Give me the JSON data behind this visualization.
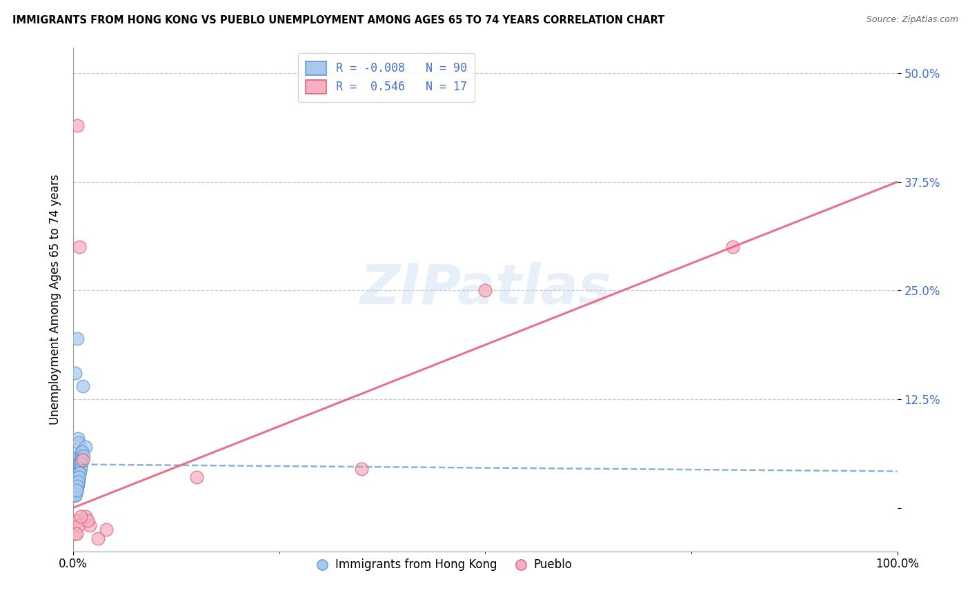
{
  "title": "IMMIGRANTS FROM HONG KONG VS PUEBLO UNEMPLOYMENT AMONG AGES 65 TO 74 YEARS CORRELATION CHART",
  "source": "Source: ZipAtlas.com",
  "ylabel": "Unemployment Among Ages 65 to 74 years",
  "xlim": [
    0,
    100
  ],
  "ylim": [
    -5,
    53
  ],
  "yticks": [
    0,
    12.5,
    25.0,
    37.5,
    50.0
  ],
  "ytick_labels": [
    "",
    "12.5%",
    "25.0%",
    "37.5%",
    "50.0%"
  ],
  "xtick_labels": [
    "0.0%",
    "100.0%"
  ],
  "xticks": [
    0,
    100
  ],
  "blue_R": -0.008,
  "blue_N": 90,
  "pink_R": 0.546,
  "pink_N": 17,
  "blue_color": "#a8c8f0",
  "pink_color": "#f5b0c0",
  "blue_edge_color": "#6699cc",
  "pink_edge_color": "#e06080",
  "blue_line_color": "#7aaad0",
  "pink_line_color": "#e8607a",
  "watermark": "ZIPatlas",
  "blue_scatter_x": [
    0.3,
    0.5,
    0.6,
    0.7,
    0.8,
    0.9,
    1.0,
    1.2,
    1.5,
    0.4,
    0.2,
    0.6,
    0.8,
    1.0,
    0.5,
    0.7,
    0.9,
    1.1,
    0.3,
    0.6,
    0.4,
    0.8,
    1.3,
    0.5,
    0.7,
    0.9,
    0.6,
    0.4,
    0.8,
    0.5,
    0.3,
    0.6,
    0.9,
    0.7,
    0.5,
    0.4,
    0.8,
    1.0,
    0.6,
    0.3,
    0.5,
    0.7,
    0.9,
    0.4,
    0.6,
    0.8,
    0.5,
    0.3,
    0.7,
    0.9,
    0.4,
    0.6,
    0.5,
    0.8,
    0.3,
    0.7,
    0.5,
    0.4,
    0.6,
    0.9,
    0.3,
    0.5,
    0.7,
    0.4,
    0.6,
    0.8,
    0.5,
    0.3,
    0.4,
    0.7,
    0.5,
    0.6,
    0.4,
    0.8,
    0.3,
    0.5,
    0.7,
    0.6,
    0.4,
    0.8,
    0.5,
    0.3,
    0.6,
    0.4,
    0.7,
    0.5,
    0.6,
    0.3,
    0.5,
    0.4
  ],
  "blue_scatter_y": [
    15.5,
    19.5,
    8.0,
    7.5,
    6.0,
    5.5,
    6.5,
    14.0,
    7.0,
    4.5,
    3.5,
    4.0,
    5.0,
    6.0,
    3.0,
    4.5,
    5.5,
    6.5,
    2.5,
    3.5,
    2.0,
    4.0,
    6.0,
    3.5,
    4.0,
    5.0,
    3.0,
    2.5,
    4.5,
    3.0,
    2.0,
    3.5,
    5.0,
    4.0,
    3.0,
    2.5,
    4.5,
    5.5,
    3.5,
    2.0,
    3.0,
    4.0,
    5.0,
    2.5,
    3.5,
    4.5,
    3.0,
    1.5,
    4.0,
    5.0,
    2.0,
    3.0,
    2.5,
    4.0,
    1.5,
    3.5,
    2.5,
    2.0,
    3.0,
    4.5,
    1.5,
    2.5,
    3.5,
    2.0,
    3.0,
    4.0,
    2.5,
    1.5,
    2.0,
    3.5,
    2.5,
    3.0,
    2.0,
    4.0,
    1.5,
    2.5,
    3.5,
    3.0,
    2.0,
    4.0,
    2.5,
    1.5,
    3.0,
    2.0,
    3.5,
    2.5,
    3.0,
    1.5,
    2.5,
    2.0
  ],
  "pink_scatter_x": [
    0.5,
    0.8,
    1.2,
    0.6,
    0.3,
    50.0,
    80.0,
    2.0,
    1.5,
    3.0,
    4.0,
    35.0,
    15.0,
    0.7,
    1.8,
    0.4,
    0.9
  ],
  "pink_scatter_y": [
    44.0,
    30.0,
    5.5,
    -1.5,
    -3.0,
    25.0,
    30.0,
    -2.0,
    -1.0,
    -3.5,
    -2.5,
    4.5,
    3.5,
    -2.0,
    -1.5,
    -3.0,
    -1.0
  ],
  "blue_trend_x": [
    0,
    100
  ],
  "blue_trend_y": [
    5.0,
    4.2
  ],
  "pink_trend_x": [
    0,
    100
  ],
  "pink_trend_y": [
    0,
    37.5
  ]
}
